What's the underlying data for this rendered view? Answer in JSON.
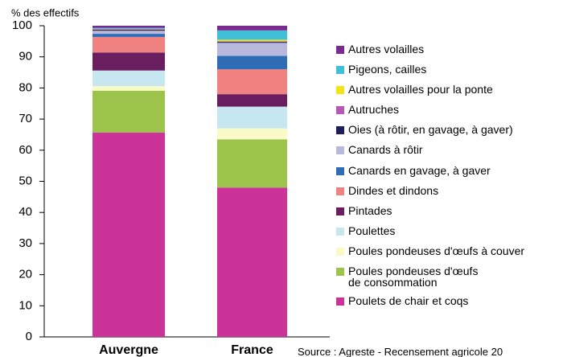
{
  "chart_data": {
    "type": "stacked_bar",
    "y_label": "% des effectifs",
    "source": "Source : Agreste - Recensement agricole 20",
    "categories": [
      "Auvergne",
      "France"
    ],
    "ylim": [
      0,
      100
    ],
    "yticks": [
      0,
      10,
      20,
      30,
      40,
      50,
      60,
      70,
      80,
      90,
      100
    ],
    "series": [
      {
        "name": "Poulets de chair et coqs",
        "color": "#cc3399",
        "values": [
          65.7,
          48
        ]
      },
      {
        "name": "Poules pondeuses d'œufs\nde consommation",
        "color": "#9dc44a",
        "values": [
          13.4,
          15.5
        ]
      },
      {
        "name": "Poules pondeuses d'œufs à couver",
        "color": "#fafac8",
        "values": [
          1.5,
          3.5
        ]
      },
      {
        "name": "Poulettes",
        "color": "#c6e7f0",
        "values": [
          5,
          7
        ]
      },
      {
        "name": "Pintades",
        "color": "#6b1e5f",
        "values": [
          5.8,
          4
        ]
      },
      {
        "name": "Dindes et dindons",
        "color": "#f08282",
        "values": [
          5,
          8
        ]
      },
      {
        "name": "Canards en gavage, à gaver",
        "color": "#2e6db5",
        "values": [
          1,
          4.3
        ]
      },
      {
        "name": "Canards à rôtir",
        "color": "#b8b8dc",
        "values": [
          1,
          4.2
        ]
      },
      {
        "name": "Oies (à rôtir, en gavage, à gaver)",
        "color": "#1e1e5a",
        "values": [
          0.3,
          0.3
        ]
      },
      {
        "name": "Autruches",
        "color": "#b45ab4",
        "values": [
          0.2,
          0.2
        ]
      },
      {
        "name": "Autres volailles pour la ponte",
        "color": "#f0e614",
        "values": [
          0.1,
          0.5
        ]
      },
      {
        "name": "Pigeons, cailles",
        "color": "#40c0d8",
        "values": [
          0.3,
          3
        ]
      },
      {
        "name": "Autres volailles",
        "color": "#7a2a90",
        "values": [
          0.7,
          1.5
        ]
      }
    ]
  }
}
